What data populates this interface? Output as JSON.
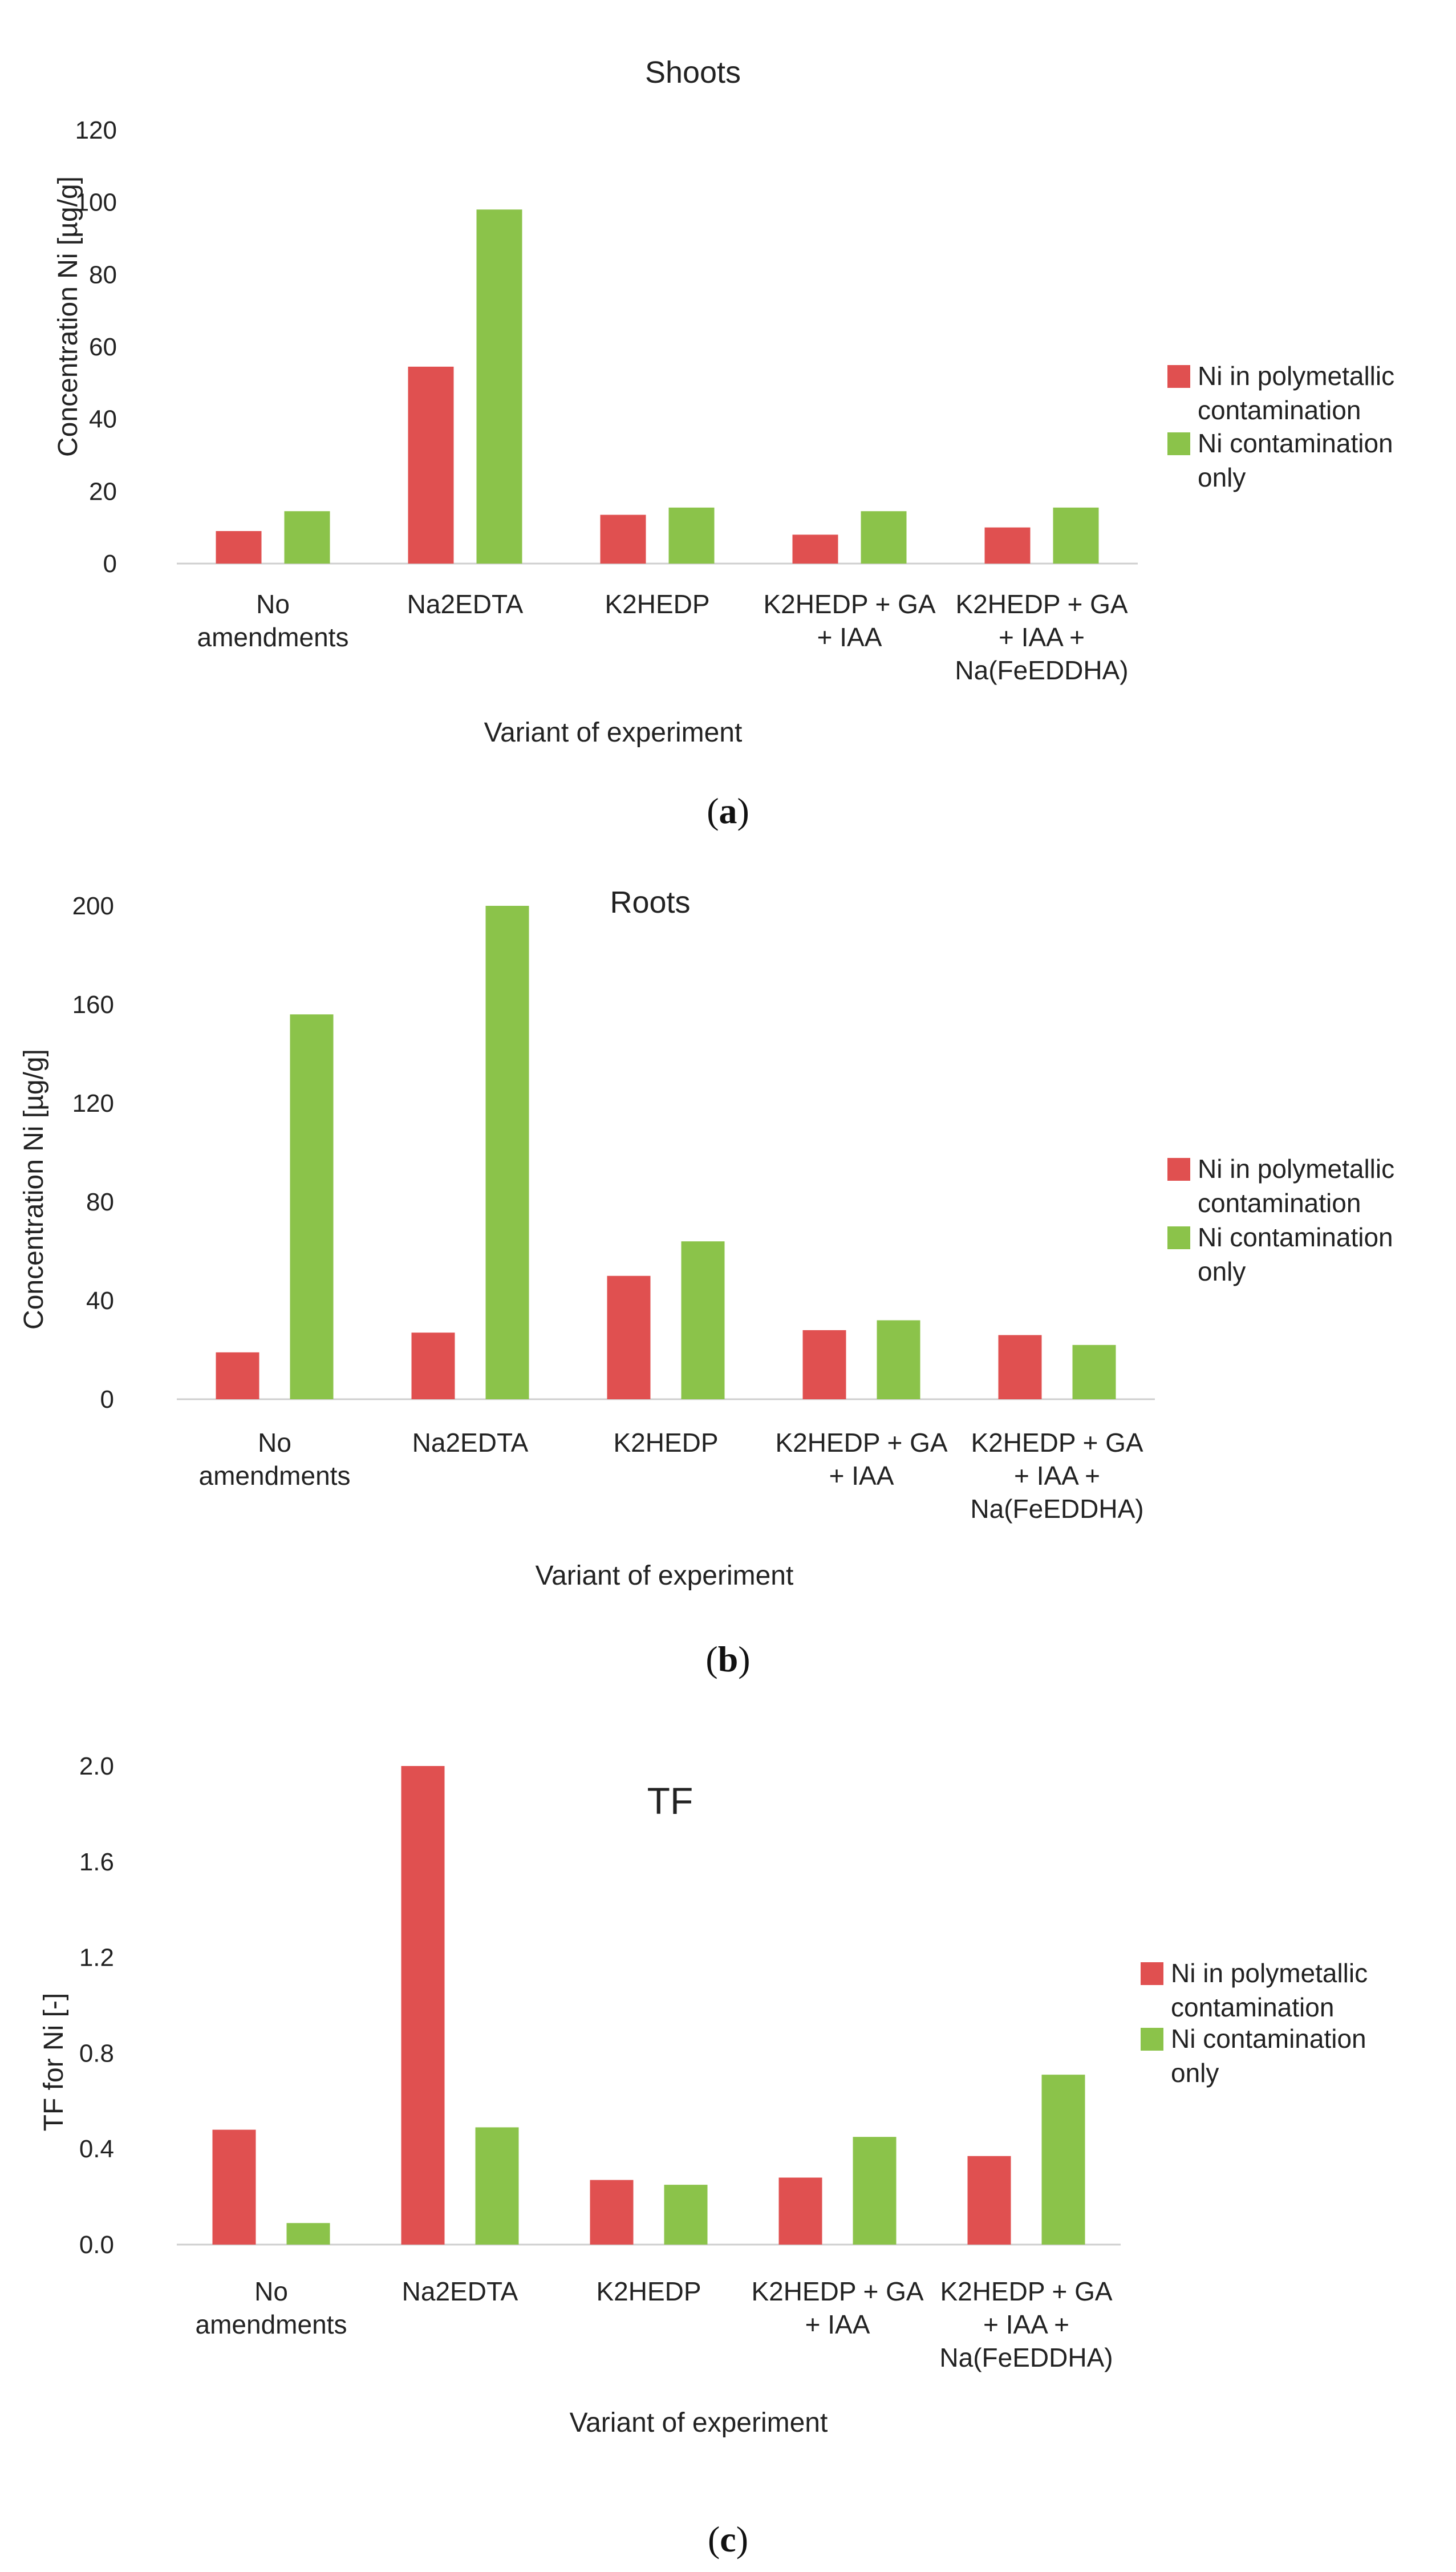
{
  "legend": {
    "series_1": "Ni in polymetallic contamination",
    "series_2": "Ni contamination only"
  },
  "colors": {
    "series_1": "#e05050",
    "series_2": "#8bc34a",
    "axis": "#cfcfcf"
  },
  "captions": {
    "a": "a",
    "b": "b",
    "c": "c"
  },
  "chart_data": [
    {
      "type": "bar",
      "title": "Shoots",
      "xlabel": "Variant of experiment",
      "ylabel": "Concentration Ni  [µg/g]",
      "categories": [
        [
          "No",
          "amendments"
        ],
        [
          "Na2EDTA"
        ],
        [
          "K2HEDP"
        ],
        [
          "K2HEDP + GA",
          "+ IAA"
        ],
        [
          "K2HEDP + GA",
          "+ IAA +",
          "Na(FeEDDHA)"
        ]
      ],
      "ylim": [
        0,
        120
      ],
      "yticks": [
        "0",
        "20",
        "40",
        "60",
        "80",
        "100",
        "120"
      ],
      "series": [
        {
          "name": "Ni in polymetallic contamination",
          "values": [
            9,
            54.5,
            13.5,
            8,
            10
          ]
        },
        {
          "name": "Ni contamination only",
          "values": [
            14.5,
            98,
            15.5,
            14.5,
            15.5
          ]
        }
      ]
    },
    {
      "type": "bar",
      "title": "Roots",
      "xlabel": "Variant of experiment",
      "ylabel": "Concentration Ni [µg/g]",
      "categories": [
        [
          "No",
          "amendments"
        ],
        [
          "Na2EDTA"
        ],
        [
          "K2HEDP"
        ],
        [
          "K2HEDP + GA",
          "+ IAA"
        ],
        [
          "K2HEDP + GA",
          "+ IAA +",
          "Na(FeEDDHA)"
        ]
      ],
      "ylim": [
        0,
        200
      ],
      "yticks": [
        "0",
        "40",
        "80",
        "120",
        "160",
        "200"
      ],
      "series": [
        {
          "name": "Ni in polymetallic contamination",
          "values": [
            19,
            27,
            50,
            28,
            26
          ]
        },
        {
          "name": "Ni contamination only",
          "values": [
            156,
            200,
            64,
            32,
            22
          ]
        }
      ]
    },
    {
      "type": "bar",
      "title": "TF",
      "xlabel": "Variant of experiment",
      "ylabel": "TF for Ni [-]",
      "categories": [
        [
          "No",
          "amendments"
        ],
        [
          "Na2EDTA"
        ],
        [
          "K2HEDP"
        ],
        [
          "K2HEDP + GA",
          "+ IAA"
        ],
        [
          "K2HEDP + GA",
          "+ IAA +",
          "Na(FeEDDHA)"
        ]
      ],
      "ylim": [
        0,
        2.0
      ],
      "yticks": [
        "0.0",
        "0.4",
        "0.8",
        "1.2",
        "1.6",
        "2.0"
      ],
      "series": [
        {
          "name": "Ni in polymetallic contamination",
          "values": [
            0.48,
            2.0,
            0.27,
            0.28,
            0.37
          ]
        },
        {
          "name": "Ni contamination only",
          "values": [
            0.09,
            0.49,
            0.25,
            0.45,
            0.71
          ]
        }
      ]
    }
  ]
}
